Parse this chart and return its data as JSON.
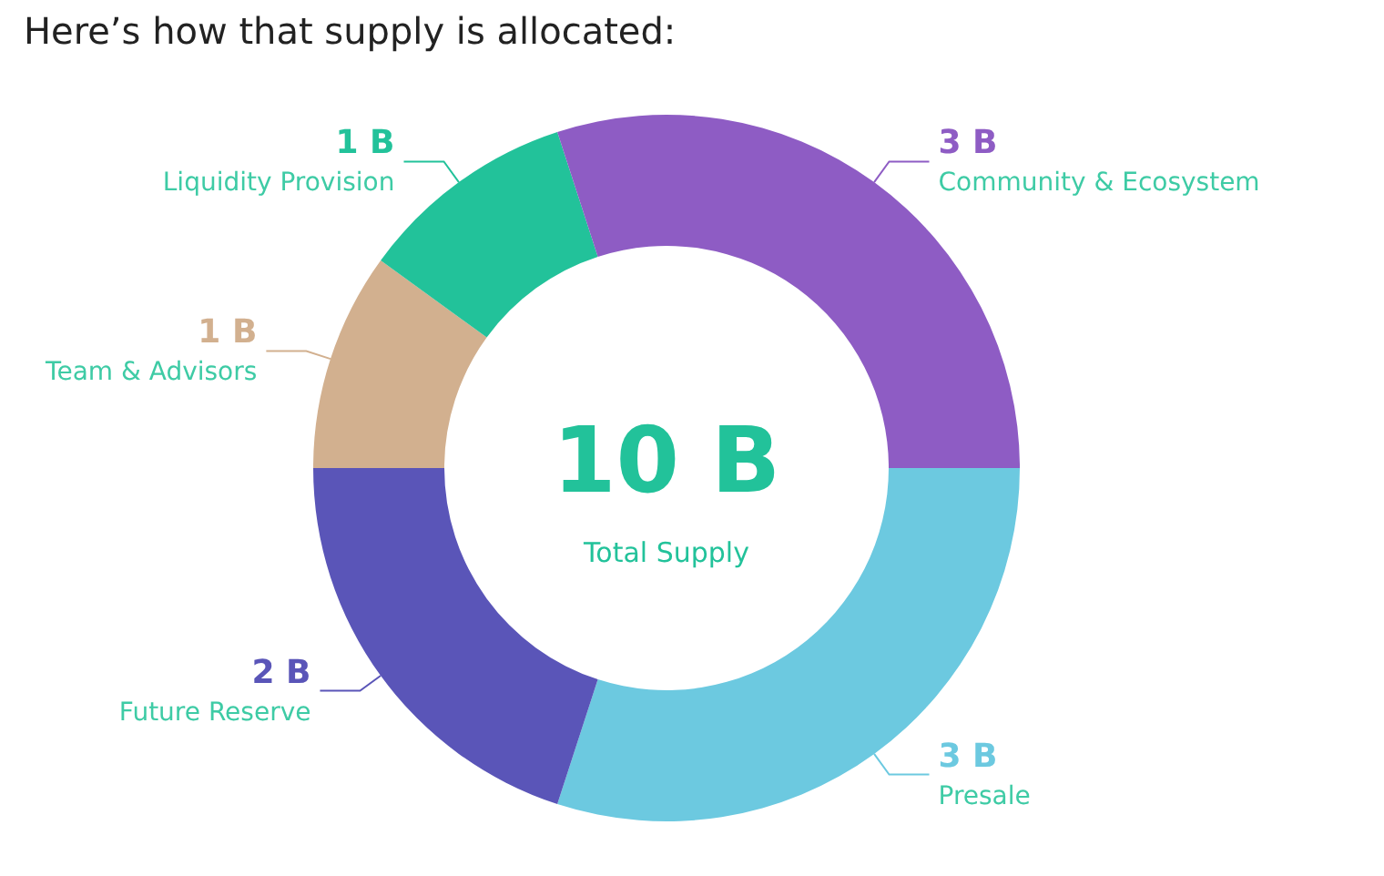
{
  "chart_data": {
    "type": "donut",
    "title": "Here’s how that supply is allocated:",
    "categories": [
      "Presale",
      "Future Reserve",
      "Team & Advisors",
      "Liquidity Provision",
      "Community & Ecosystem"
    ],
    "values": [
      3,
      2,
      1,
      1,
      3
    ],
    "colors": [
      "#6cc9e0",
      "#5a55b8",
      "#d2b08f",
      "#22c29a",
      "#8e5cc4"
    ],
    "value_labels": [
      "3 B",
      "2 B",
      "1 B",
      "1 B",
      "3 B"
    ],
    "annotations": [
      "10 B",
      "Total Supply"
    ],
    "legend": false
  }
}
